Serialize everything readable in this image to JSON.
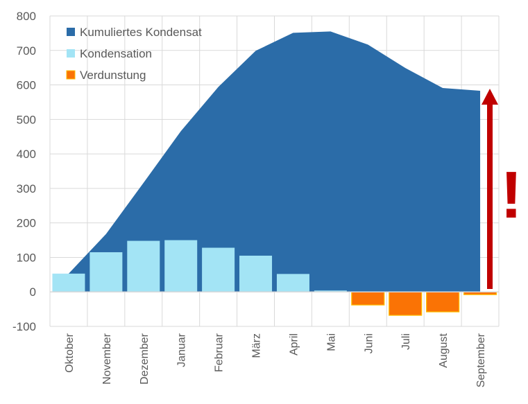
{
  "chart_data": {
    "type": "bar",
    "title": "",
    "xlabel": "",
    "ylabel": "",
    "ylim": [
      -100,
      800
    ],
    "yticks": [
      -100,
      0,
      100,
      200,
      300,
      400,
      500,
      600,
      700,
      800
    ],
    "grid": true,
    "legend_position": "top-left",
    "categories": [
      "Oktober",
      "November",
      "Dezember",
      "Januar",
      "Februar",
      "März",
      "April",
      "Mai",
      "Juni",
      "Juli",
      "August",
      "September"
    ],
    "series": [
      {
        "name": "Kumuliertes Kondensat",
        "type": "area",
        "color": "#2B6CA8",
        "values": [
          53,
          168,
          316,
          466,
          594,
          699,
          751,
          755,
          717,
          649,
          591,
          583
        ]
      },
      {
        "name": "Kondensation",
        "type": "bar",
        "color": "#A3E4F5",
        "values": [
          53,
          115,
          148,
          150,
          128,
          105,
          52,
          4,
          0,
          0,
          0,
          0
        ]
      },
      {
        "name": "Verdunstung",
        "type": "bar",
        "color": "#FA7305",
        "border": "#FFC000",
        "values": [
          0,
          0,
          0,
          0,
          0,
          0,
          0,
          0,
          -38,
          -68,
          -58,
          -8
        ]
      }
    ],
    "annotations": {
      "arrow_color": "#C00000",
      "exclamation": "!"
    }
  }
}
